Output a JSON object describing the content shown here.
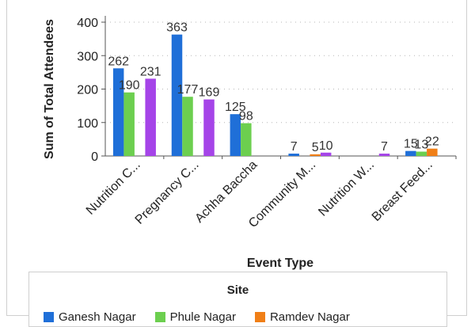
{
  "chart_data": {
    "type": "bar",
    "xlabel": "Event Type",
    "ylabel": "Sum of Total Attendees",
    "ylim": [
      0,
      400
    ],
    "yticks": [
      0,
      100,
      200,
      300,
      400
    ],
    "categories": [
      "Nutrition C...",
      "Pregnancy C...",
      "Achha Baccha",
      "Community M...",
      "Nutrition W...",
      "Breast Feed..."
    ],
    "series": [
      {
        "name": "Ganesh Nagar",
        "color": "#1f6fd8",
        "values": [
          262,
          363,
          125,
          7,
          null,
          15
        ]
      },
      {
        "name": "Phule Nagar",
        "color": "#6ccf4f",
        "values": [
          190,
          177,
          98,
          null,
          null,
          13
        ]
      },
      {
        "name": "Ramdev Nagar",
        "color": "#f07f17",
        "values": [
          null,
          null,
          null,
          5,
          null,
          22
        ]
      },
      {
        "name": "",
        "color": "#a544e8",
        "values": [
          231,
          169,
          null,
          10,
          7,
          null
        ]
      }
    ],
    "legend": {
      "title": "Site",
      "placement": "bottom"
    },
    "grid": true
  }
}
